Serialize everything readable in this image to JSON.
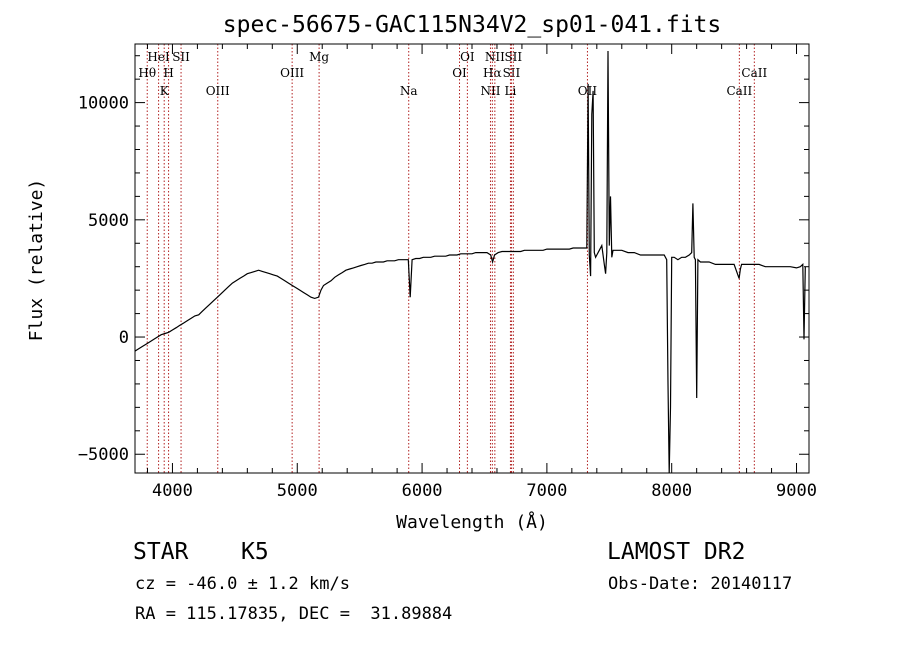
{
  "chart_data": {
    "type": "line",
    "title": "spec-56675-GAC115N34V2_sp01-041.fits",
    "xlabel": "Wavelength (Å)",
    "ylabel": "Flux (relative)",
    "xlim": [
      3700,
      9100
    ],
    "ylim": [
      -5800,
      12500
    ],
    "xticks": [
      4000,
      5000,
      6000,
      7000,
      8000,
      9000
    ],
    "yticks": [
      -5000,
      0,
      5000,
      10000
    ],
    "grid": false,
    "line_color": "#000000",
    "marker_color": "#b22222",
    "series": [
      {
        "x": [
          3700,
          3730,
          3760,
          3790,
          3820,
          3850,
          3880,
          3910,
          3940,
          3970,
          4000,
          4030,
          4060,
          4090,
          4120,
          4150,
          4180,
          4210,
          4240,
          4270,
          4300,
          4330,
          4360,
          4390,
          4420,
          4450,
          4480,
          4510,
          4540,
          4570,
          4600,
          4630,
          4660,
          4690,
          4720,
          4750,
          4780,
          4810,
          4840,
          4870,
          4900,
          4930,
          4960,
          4990,
          5020,
          5050,
          5080,
          5110,
          5140,
          5170,
          5190,
          5210,
          5240,
          5270,
          5300,
          5330,
          5360,
          5390,
          5420,
          5450,
          5480,
          5510,
          5540,
          5570,
          5600,
          5630,
          5660,
          5690,
          5720,
          5750,
          5780,
          5810,
          5840,
          5870,
          5890,
          5905,
          5920,
          5950,
          5980,
          6010,
          6040,
          6070,
          6100,
          6130,
          6160,
          6190,
          6220,
          6250,
          6280,
          6310,
          6340,
          6370,
          6400,
          6430,
          6460,
          6490,
          6520,
          6550,
          6565,
          6580,
          6610,
          6640,
          6670,
          6700,
          6730,
          6760,
          6790,
          6820,
          6850,
          6880,
          6910,
          6940,
          6970,
          7000,
          7030,
          7060,
          7090,
          7120,
          7150,
          7180,
          7210,
          7240,
          7270,
          7300,
          7320,
          7330,
          7340,
          7350,
          7360,
          7370,
          7380,
          7390,
          7400,
          7420,
          7440,
          7460,
          7470,
          7480,
          7490,
          7500,
          7510,
          7520,
          7530,
          7550,
          7600,
          7650,
          7700,
          7750,
          7800,
          7850,
          7900,
          7940,
          7960,
          7970,
          7980,
          7990,
          8000,
          8020,
          8050,
          8080,
          8110,
          8140,
          8160,
          8170,
          8180,
          8190,
          8200,
          8210,
          8230,
          8260,
          8300,
          8350,
          8400,
          8450,
          8500,
          8540,
          8550,
          8560,
          8570,
          8600,
          8650,
          8700,
          8750,
          8800,
          8850,
          8900,
          8950,
          9000,
          9030,
          9050,
          9060,
          9070
        ],
        "y": [
          -600,
          -500,
          -400,
          -300,
          -200,
          -100,
          0,
          100,
          150,
          200,
          300,
          400,
          500,
          600,
          700,
          800,
          900,
          950,
          1100,
          1250,
          1400,
          1550,
          1700,
          1850,
          2000,
          2150,
          2300,
          2400,
          2500,
          2600,
          2700,
          2750,
          2800,
          2850,
          2800,
          2750,
          2700,
          2650,
          2600,
          2500,
          2400,
          2300,
          2200,
          2100,
          2000,
          1900,
          1800,
          1700,
          1650,
          1700,
          2000,
          2200,
          2300,
          2400,
          2550,
          2650,
          2750,
          2850,
          2900,
          2950,
          3000,
          3050,
          3100,
          3150,
          3150,
          3200,
          3200,
          3200,
          3250,
          3250,
          3250,
          3300,
          3300,
          3300,
          3300,
          1700,
          3300,
          3350,
          3350,
          3400,
          3400,
          3400,
          3450,
          3450,
          3450,
          3450,
          3500,
          3500,
          3500,
          3550,
          3550,
          3550,
          3550,
          3600,
          3600,
          3600,
          3600,
          3500,
          3200,
          3500,
          3600,
          3650,
          3650,
          3650,
          3650,
          3650,
          3650,
          3700,
          3700,
          3700,
          3700,
          3700,
          3700,
          3750,
          3750,
          3750,
          3750,
          3750,
          3750,
          3750,
          3800,
          3800,
          3800,
          3800,
          3800,
          10800,
          3500,
          2600,
          9500,
          10500,
          3600,
          3400,
          3500,
          3700,
          3900,
          3100,
          2700,
          3600,
          12200,
          3900,
          6000,
          3400,
          3700,
          3700,
          3700,
          3600,
          3600,
          3500,
          3500,
          3500,
          3500,
          3500,
          3300,
          -2000,
          -5800,
          -3000,
          3400,
          3400,
          3300,
          3400,
          3400,
          3500,
          3600,
          5700,
          3400,
          3300,
          -2600,
          3300,
          3200,
          3200,
          3200,
          3100,
          3100,
          3100,
          3100,
          2500,
          2900,
          3100,
          3100,
          3100,
          3100,
          3100,
          3000,
          3000,
          3000,
          3000,
          3000,
          2950,
          3000,
          3100,
          -100,
          3000
        ]
      }
    ],
    "line_markers": [
      {
        "label": "Hθ",
        "x": 3798,
        "row": 2
      },
      {
        "label": "HeI",
        "x": 3889,
        "row": 1
      },
      {
        "label": "K",
        "x": 3934,
        "row": 3
      },
      {
        "label": "H",
        "x": 3969,
        "row": 2
      },
      {
        "label": "SII",
        "x": 4069,
        "row": 1
      },
      {
        "label": "OIII",
        "x": 4363,
        "row": 3
      },
      {
        "label": "OIII",
        "x": 4959,
        "row": 2
      },
      {
        "label": "Mg",
        "x": 5175,
        "row": 1
      },
      {
        "label": "Na",
        "x": 5893,
        "row": 3
      },
      {
        "label": "OI",
        "x": 6300,
        "row": 2
      },
      {
        "label": "OI",
        "x": 6363,
        "row": 1
      },
      {
        "label": "NII",
        "x": 6548,
        "row": 3
      },
      {
        "label": "Hα",
        "x": 6563,
        "row": 2
      },
      {
        "label": "NII",
        "x": 6583,
        "row": 1
      },
      {
        "label": "Li",
        "x": 6708,
        "row": 3
      },
      {
        "label": "SII",
        "x": 6716,
        "row": 2
      },
      {
        "label": "SII",
        "x": 6731,
        "row": 1
      },
      {
        "label": "OII",
        "x": 7325,
        "row": 3
      },
      {
        "label": "CaII",
        "x": 8542,
        "row": 3
      },
      {
        "label": "CaII",
        "x": 8662,
        "row": 2
      }
    ]
  },
  "info": {
    "class_label": "STAR",
    "subclass": "K5",
    "survey": "LAMOST DR2",
    "cz_line": "cz = -46.0 ± 1.2 km/s",
    "obs_date_line": "Obs-Date: 20140117",
    "radec_line": "RA = 115.17835, DEC =  31.89884"
  }
}
